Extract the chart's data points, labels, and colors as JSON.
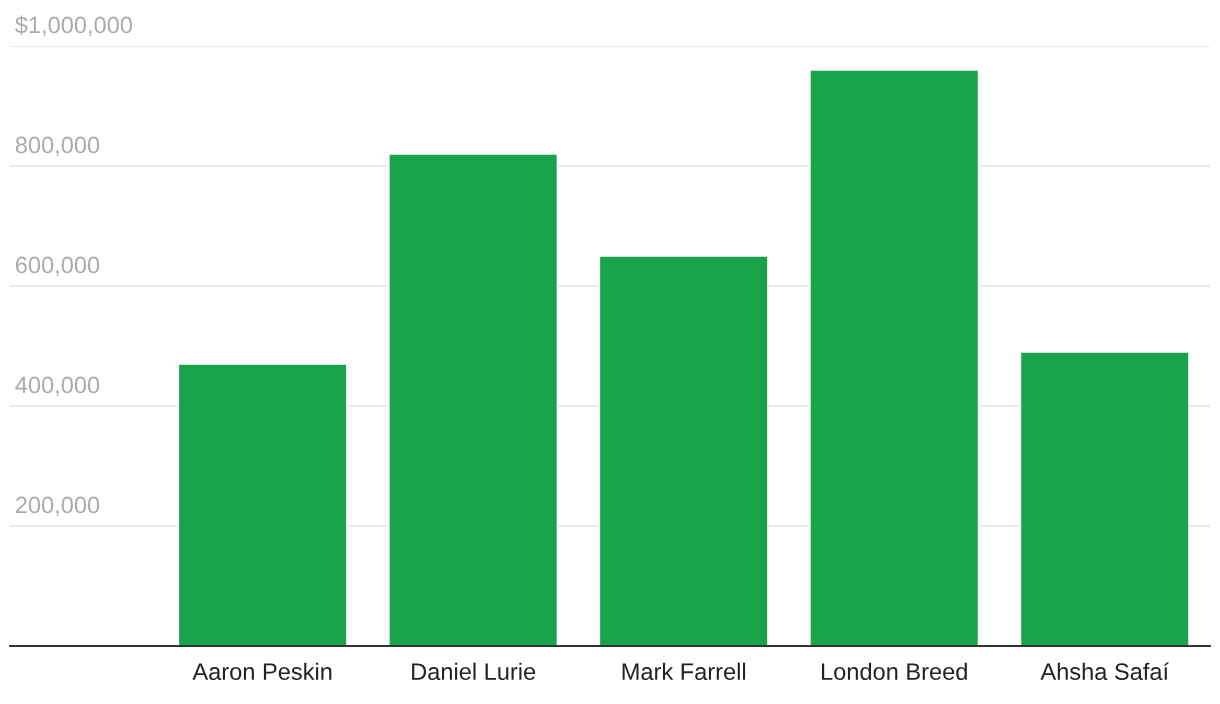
{
  "chart_data": {
    "type": "bar",
    "categories": [
      "Aaron Peskin",
      "Daniel Lurie",
      "Mark Farrell",
      "London Breed",
      "Ahsha Safaí"
    ],
    "values": [
      470000,
      820000,
      650000,
      960000,
      490000
    ],
    "color": "#19a34a",
    "ylim": [
      0,
      1000000
    ],
    "yticks": [
      {
        "value": 0,
        "label": null
      },
      {
        "value": 200000,
        "label": "200,000"
      },
      {
        "value": 400000,
        "label": "400,000"
      },
      {
        "value": 600000,
        "label": "600,000"
      },
      {
        "value": 800000,
        "label": "800,000"
      },
      {
        "value": 1000000,
        "label": "$1,000,000"
      }
    ],
    "grid": "y",
    "legend": false
  }
}
